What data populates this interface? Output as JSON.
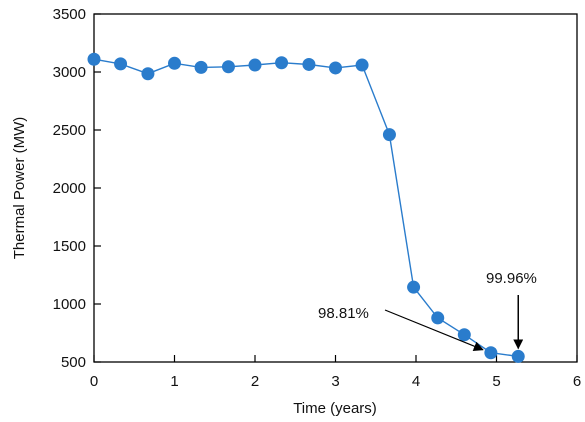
{
  "chart_data": {
    "type": "line",
    "xlabel": "Time (years)",
    "ylabel": "Thermal Power (MW)",
    "xlim": [
      0,
      6
    ],
    "ylim": [
      500,
      3500
    ],
    "xticks": [
      0,
      1,
      2,
      3,
      4,
      5,
      6
    ],
    "yticks": [
      500,
      1000,
      1500,
      2000,
      2500,
      3000,
      3500
    ],
    "grid": false,
    "series": [
      {
        "color": "#2a7ccc",
        "x": [
          0,
          0.33,
          0.67,
          1.0,
          1.33,
          1.67,
          2.0,
          2.33,
          2.67,
          3.0,
          3.33,
          3.67,
          3.97,
          4.27,
          4.6,
          4.93,
          5.27
        ],
        "y": [
          3110,
          3070,
          2985,
          3075,
          3040,
          3045,
          3060,
          3080,
          3065,
          3035,
          3060,
          2460,
          1145,
          880,
          735,
          580,
          548
        ]
      }
    ],
    "annotations": [
      {
        "text": "98.81%",
        "x": 4.93,
        "y": 580
      },
      {
        "text": "99.96%",
        "x": 5.27,
        "y": 548
      }
    ]
  }
}
